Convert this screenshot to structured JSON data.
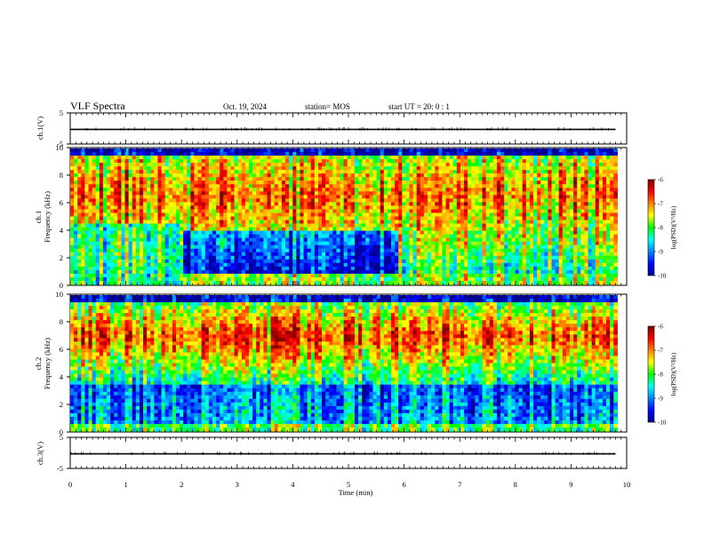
{
  "header": {
    "title": "VLF Spectra",
    "date": "Oct. 19, 2024",
    "station": "station= MOS",
    "start": "start  UT =   20: 0  : 1"
  },
  "chart_data": [
    {
      "type": "line",
      "name": "ch1-waveform",
      "ylabel": "ch.1(V)",
      "ylim": [
        -5,
        5
      ],
      "yticks": [
        5,
        -5
      ],
      "xlim": [
        0,
        10
      ],
      "x": [
        0,
        9.8
      ],
      "y": [
        -0.3,
        -0.3
      ]
    },
    {
      "type": "heatmap",
      "name": "ch1-spectrogram",
      "ylabel": "ch.1 Frequency (kHz)",
      "ylim": [
        0,
        10
      ],
      "yticks": [
        0,
        2,
        4,
        6,
        8,
        10
      ],
      "xlim": [
        0,
        10
      ],
      "data_end": 9.83,
      "colorbar": {
        "label": "log(PSD)(V²/Hz)",
        "range": [
          -10,
          -6
        ],
        "ticks": [
          -6,
          -7,
          -8,
          -9,
          -10
        ]
      }
    },
    {
      "type": "heatmap",
      "name": "ch2-spectrogram",
      "ylabel": "ch.2 Frequency (kHz)",
      "ylim": [
        0,
        10
      ],
      "yticks": [
        0,
        2,
        4,
        6,
        8,
        10
      ],
      "xlim": [
        0,
        10
      ],
      "data_end": 9.83,
      "colorbar": {
        "label": "log(PSD)(V²/Hz)",
        "range": [
          -10,
          -6
        ],
        "ticks": [
          -6,
          -7,
          -8,
          -9,
          -10
        ]
      }
    },
    {
      "type": "line",
      "name": "ch3-waveform",
      "ylabel": "ch.3(V)",
      "ylim": [
        -5,
        5
      ],
      "yticks": [
        5,
        -5
      ],
      "xlim": [
        0,
        10
      ],
      "x": [
        0,
        9.8
      ],
      "y": [
        -0.3,
        -0.3
      ]
    }
  ],
  "xaxis": {
    "label": "Time  (min)",
    "ticks": [
      "0",
      "1",
      "2",
      "3",
      "4",
      "5",
      "6",
      "7",
      "8",
      "9",
      "10"
    ]
  },
  "colors": {
    "jet": [
      "#00008f",
      "#0000ff",
      "#00ffff",
      "#00ff00",
      "#ffff00",
      "#ff0000",
      "#800000"
    ]
  }
}
